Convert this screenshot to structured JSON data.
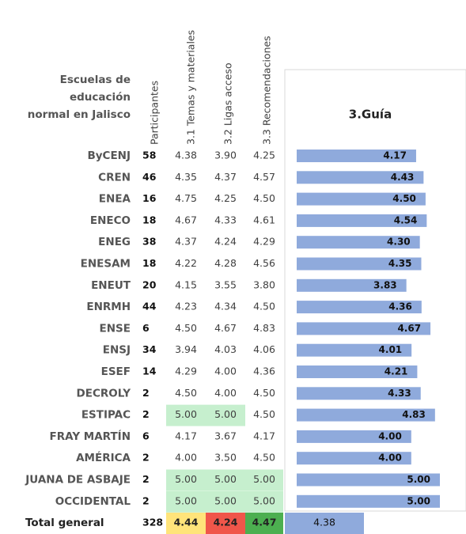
{
  "header": {
    "title_lines": [
      "Escuelas de",
      "educación",
      "normal en Jalisco"
    ],
    "columns": [
      "Participantes",
      "3.1 Temas y materiales",
      "3.2 Ligas acceso",
      "3.3 Recomendaciones"
    ],
    "guia_title": "3.Guía"
  },
  "bar_color": "#8faadc",
  "rows": [
    {
      "name": "ByCENJ",
      "participants": 58,
      "scores": [
        "4.38",
        "3.90",
        "4.25"
      ],
      "guia": 4.17,
      "guia_label": "4.17"
    },
    {
      "name": "CREN",
      "participants": 46,
      "scores": [
        "4.35",
        "4.37",
        "4.57"
      ],
      "guia": 4.43,
      "guia_label": "4.43"
    },
    {
      "name": "ENEA",
      "participants": 16,
      "scores": [
        "4.75",
        "4.25",
        "4.50"
      ],
      "guia": 4.5,
      "guia_label": "4.50"
    },
    {
      "name": "ENECO",
      "participants": 18,
      "scores": [
        "4.67",
        "4.33",
        "4.61"
      ],
      "guia": 4.54,
      "guia_label": "4.54"
    },
    {
      "name": "ENEG",
      "participants": 38,
      "scores": [
        "4.37",
        "4.24",
        "4.29"
      ],
      "guia": 4.3,
      "guia_label": "4.30"
    },
    {
      "name": "ENESAM",
      "participants": 18,
      "scores": [
        "4.22",
        "4.28",
        "4.56"
      ],
      "guia": 4.35,
      "guia_label": "4.35"
    },
    {
      "name": "ENEUT",
      "participants": 20,
      "scores": [
        "4.15",
        "3.55",
        "3.80"
      ],
      "guia": 3.83,
      "guia_label": "3.83"
    },
    {
      "name": "ENRMH",
      "participants": 44,
      "scores": [
        "4.23",
        "4.34",
        "4.50"
      ],
      "guia": 4.36,
      "guia_label": "4.36"
    },
    {
      "name": "ENSE",
      "participants": 6,
      "scores": [
        "4.50",
        "4.67",
        "4.83"
      ],
      "guia": 4.67,
      "guia_label": "4.67"
    },
    {
      "name": "ENSJ",
      "participants": 34,
      "scores": [
        "3.94",
        "4.03",
        "4.06"
      ],
      "guia": 4.01,
      "guia_label": "4.01"
    },
    {
      "name": "ESEF",
      "participants": 14,
      "scores": [
        "4.29",
        "4.00",
        "4.36"
      ],
      "guia": 4.21,
      "guia_label": "4.21"
    },
    {
      "name": "DECROLY",
      "participants": 2,
      "scores": [
        "4.50",
        "4.00",
        "4.50"
      ],
      "guia": 4.33,
      "guia_label": "4.33"
    },
    {
      "name": "ESTIPAC",
      "participants": 2,
      "scores": [
        "5.00",
        "5.00",
        "4.50"
      ],
      "fills": [
        "#c6efce",
        "#c6efce",
        null
      ],
      "guia": 4.83,
      "guia_label": "4.83"
    },
    {
      "name": "FRAY MARTÍN",
      "participants": 6,
      "scores": [
        "4.17",
        "3.67",
        "4.17"
      ],
      "guia": 4.0,
      "guia_label": "4.00"
    },
    {
      "name": "AMÉRICA",
      "participants": 2,
      "scores": [
        "4.00",
        "3.50",
        "4.50"
      ],
      "guia": 4.0,
      "guia_label": "4.00"
    },
    {
      "name": "JUANA DE ASBAJE",
      "participants": 2,
      "scores": [
        "5.00",
        "5.00",
        "5.00"
      ],
      "fills": [
        "#c6efce",
        "#c6efce",
        "#c6efce"
      ],
      "guia": 5.0,
      "guia_label": "5.00"
    },
    {
      "name": "OCCIDENTAL",
      "participants": 2,
      "scores": [
        "5.00",
        "5.00",
        "5.00"
      ],
      "fills": [
        "#c6efce",
        "#c6efce",
        "#c6efce"
      ],
      "guia": 5.0,
      "guia_label": "5.00"
    }
  ],
  "total": {
    "name": "Total general",
    "participants": 328,
    "scores": [
      "4.44",
      "4.24",
      "4.47"
    ],
    "fills": [
      "#ffe47a",
      "#f0564a",
      "#4caf50"
    ],
    "guia_label": "4.38"
  }
}
